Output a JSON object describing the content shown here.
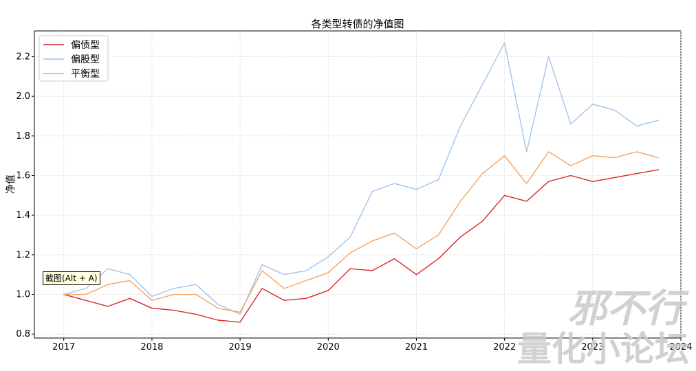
{
  "chart_data": {
    "type": "line",
    "title": "各类型转债的净值图",
    "ylabel": "净值",
    "xlabel": "",
    "x_ticks": [
      "2017",
      "2018",
      "2019",
      "2020",
      "2021",
      "2022",
      "2023",
      "2024"
    ],
    "y_ticks": [
      "0.8",
      "1.0",
      "1.2",
      "1.4",
      "1.6",
      "1.8",
      "2.0",
      "2.2"
    ],
    "xlim": [
      "2016-09",
      "2024-01"
    ],
    "ylim": [
      0.78,
      2.33
    ],
    "grid": true,
    "legend_position": "top-left",
    "x": [
      "2017-01",
      "2017-04",
      "2017-07",
      "2017-10",
      "2018-01",
      "2018-04",
      "2018-07",
      "2018-10",
      "2019-01",
      "2019-04",
      "2019-07",
      "2019-10",
      "2020-01",
      "2020-04",
      "2020-07",
      "2020-10",
      "2021-01",
      "2021-04",
      "2021-07",
      "2021-10",
      "2022-01",
      "2022-04",
      "2022-07",
      "2022-10",
      "2023-01",
      "2023-04",
      "2023-07",
      "2023-10"
    ],
    "series": [
      {
        "name": "偏债型",
        "color": "#d62728",
        "values": [
          1.0,
          0.97,
          0.94,
          0.98,
          0.93,
          0.92,
          0.9,
          0.87,
          0.86,
          1.03,
          0.97,
          0.98,
          1.02,
          1.13,
          1.12,
          1.18,
          1.1,
          1.18,
          1.29,
          1.37,
          1.5,
          1.47,
          1.57,
          1.6,
          1.57,
          1.59,
          1.61,
          1.63
        ]
      },
      {
        "name": "偏股型",
        "color": "#9fc5f0",
        "values": [
          1.0,
          1.03,
          1.13,
          1.1,
          0.99,
          1.03,
          1.05,
          0.95,
          0.9,
          1.15,
          1.1,
          1.12,
          1.19,
          1.29,
          1.52,
          1.56,
          1.53,
          1.58,
          1.85,
          2.06,
          2.27,
          1.72,
          2.2,
          1.86,
          1.96,
          1.93,
          1.85,
          1.88
        ]
      },
      {
        "name": "平衡型",
        "color": "#f4a361",
        "values": [
          1.0,
          1.0,
          1.05,
          1.07,
          0.97,
          1.0,
          1.0,
          0.93,
          0.91,
          1.12,
          1.03,
          1.07,
          1.11,
          1.21,
          1.27,
          1.31,
          1.23,
          1.3,
          1.47,
          1.61,
          1.7,
          1.56,
          1.72,
          1.65,
          1.7,
          1.69,
          1.72,
          1.69
        ]
      }
    ]
  },
  "overlay": {
    "tooltip_text": "截图(Alt + A)",
    "watermark_line1": "邪不行",
    "watermark_line2": "量化小论坛"
  }
}
